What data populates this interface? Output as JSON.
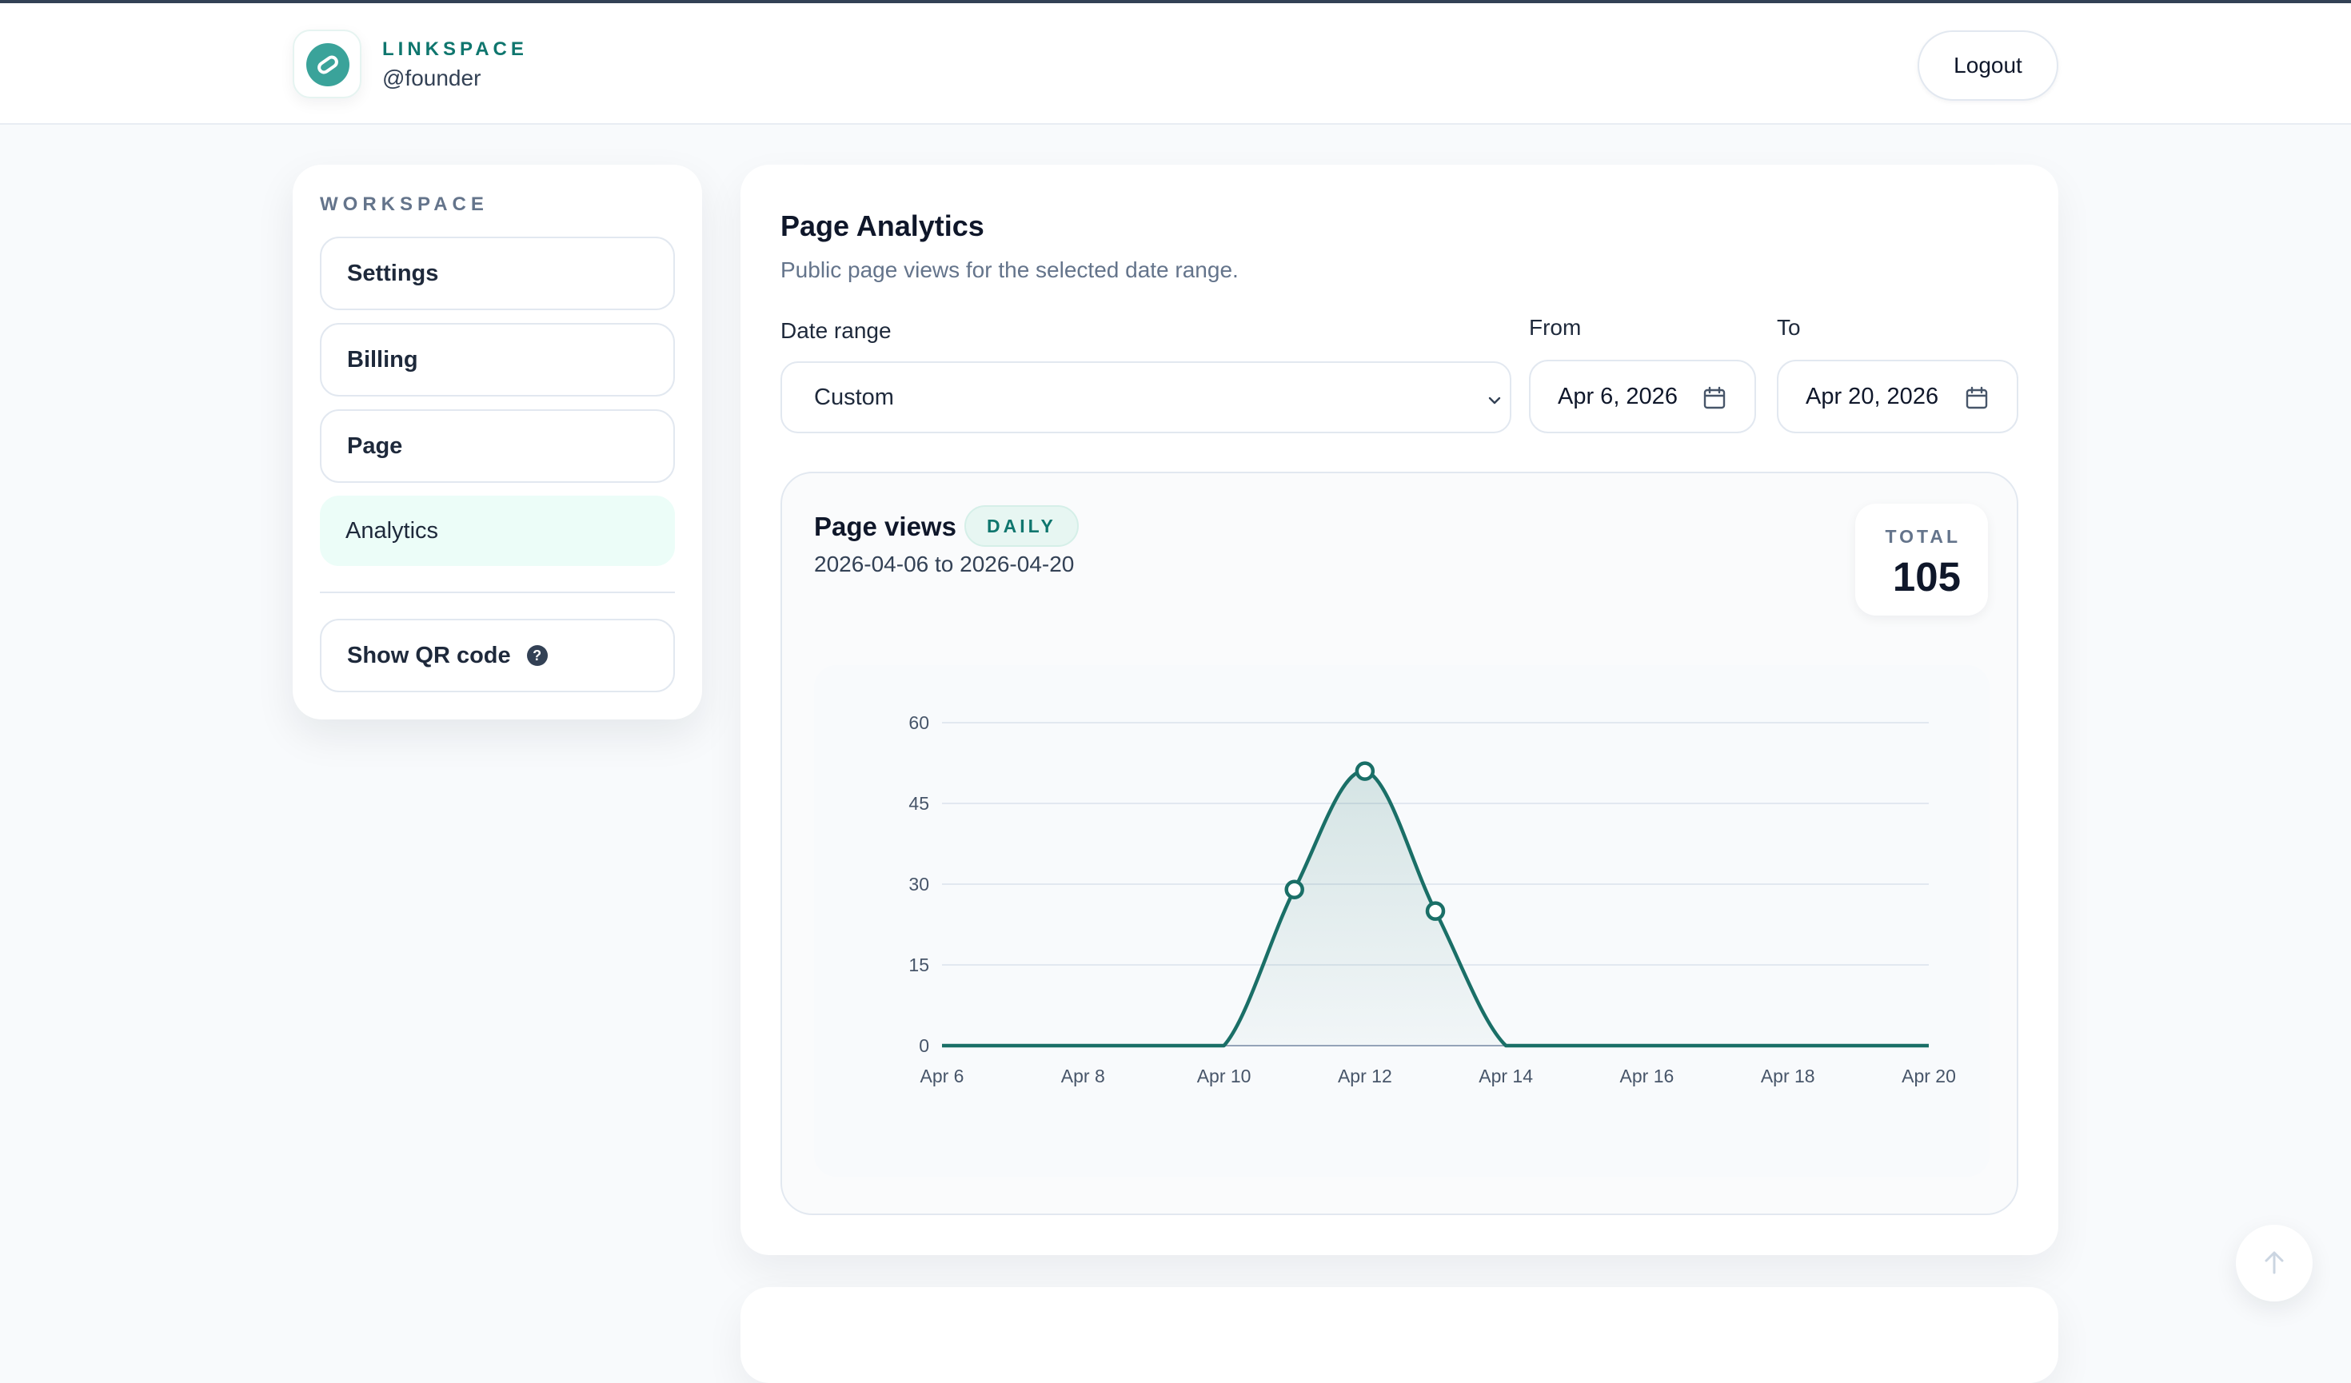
{
  "header": {
    "brand": "LINKSPACE",
    "handle": "@founder",
    "logout_label": "Logout",
    "logo_icon": "link-badge-icon"
  },
  "sidebar": {
    "heading": "WORKSPACE",
    "items": [
      {
        "label": "Settings",
        "active": false
      },
      {
        "label": "Billing",
        "active": false
      },
      {
        "label": "Page",
        "active": false
      },
      {
        "label": "Analytics",
        "active": true
      }
    ],
    "qr_label": "Show QR code",
    "qr_help_icon": "help-circle-icon"
  },
  "main": {
    "title": "Page Analytics",
    "subtitle": "Public page views for the selected date range.",
    "date_range_label": "Date range",
    "date_range_value": "Custom",
    "from_label": "From",
    "from_value": "Apr 6, 2026",
    "to_label": "To",
    "to_value": "Apr 20, 2026"
  },
  "chart_card": {
    "title": "Page views",
    "badge": "DAILY",
    "range_text": "2026-04-06 to 2026-04-20",
    "total_label": "TOTAL",
    "total_value": "105"
  },
  "colors": {
    "accent": "#0f766e",
    "line": "#1a6f67",
    "active_nav_bg": "#ecfdf8",
    "grid": "#e2e8f0"
  },
  "chart_data": {
    "type": "area",
    "title": "",
    "xlabel": "",
    "ylabel": "",
    "x": [
      "Apr 6",
      "Apr 7",
      "Apr 8",
      "Apr 9",
      "Apr 10",
      "Apr 11",
      "Apr 12",
      "Apr 13",
      "Apr 14",
      "Apr 15",
      "Apr 16",
      "Apr 17",
      "Apr 18",
      "Apr 19",
      "Apr 20"
    ],
    "x_tick_labels": [
      "Apr 6",
      "Apr 8",
      "Apr 10",
      "Apr 12",
      "Apr 14",
      "Apr 16",
      "Apr 18",
      "Apr 20"
    ],
    "series": [
      {
        "values": [
          0,
          0,
          0,
          0,
          0,
          29,
          51,
          25,
          0,
          0,
          0,
          0,
          0,
          0,
          0
        ]
      }
    ],
    "ylim": [
      0,
      60
    ],
    "y_ticks": [
      0,
      15,
      30,
      45,
      60
    ],
    "grid": true,
    "legend": "none"
  }
}
